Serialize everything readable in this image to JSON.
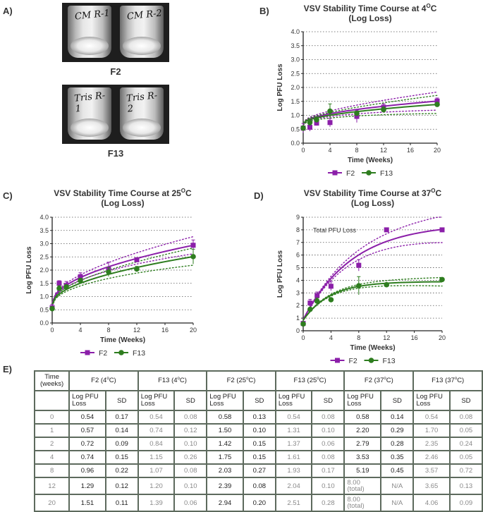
{
  "panel_labels": {
    "a": "A)",
    "b": "B)",
    "c": "C)",
    "d": "D)",
    "e": "E)"
  },
  "photos": {
    "f2": {
      "caption": "F2",
      "vial_left": "CM R-1",
      "vial_right": "CM R-2"
    },
    "f13": {
      "caption": "F13",
      "vial_left": "Tris R-1",
      "vial_right": "Tris R-2"
    }
  },
  "colors": {
    "f2": "#8b1fa9",
    "f13": "#2e7d1f"
  },
  "chart_data": [
    {
      "type": "scatter",
      "title_line1": "VSV Stability Time Course at 4",
      "title_sup": "O",
      "title_unit": "C",
      "title_line2": "(Log Loss)",
      "xlabel": "Time (Weeks)",
      "ylabel": "Log PFU Loss",
      "xlim": [
        0,
        20
      ],
      "ylim": [
        0,
        4
      ],
      "xticks": [
        0,
        4,
        8,
        12,
        16,
        20
      ],
      "yticks": [
        0.0,
        0.5,
        1.0,
        1.5,
        2.0,
        2.5,
        3.0,
        3.5,
        4.0
      ],
      "ytick_labels": [
        "0.0",
        "0.5",
        "1.0",
        "1.5",
        "2.0",
        "2.5",
        "3.0",
        "3.5",
        "4.0"
      ],
      "legend": [
        "F2",
        "F13"
      ],
      "series": [
        {
          "name": "F2",
          "x": [
            0,
            1,
            2,
            4,
            8,
            12,
            20
          ],
          "y": [
            0.54,
            0.57,
            0.72,
            0.74,
            0.96,
            1.29,
            1.51
          ],
          "sd": [
            0.17,
            0.14,
            0.09,
            0.15,
            0.22,
            0.12,
            0.11
          ]
        },
        {
          "name": "F13",
          "x": [
            0,
            1,
            2,
            4,
            8,
            12,
            20
          ],
          "y": [
            0.54,
            0.74,
            0.84,
            1.15,
            1.07,
            1.2,
            1.39
          ],
          "sd": [
            0.08,
            0.12,
            0.1,
            0.26,
            0.08,
            0.1,
            0.06
          ]
        }
      ]
    },
    {
      "type": "scatter",
      "title_line1": "VSV Stability Time Course at 25",
      "title_sup": "O",
      "title_unit": "C",
      "title_line2": "(Log Loss)",
      "xlabel": "Time (Weeks)",
      "ylabel": "Log PFU Loss",
      "xlim": [
        0,
        20
      ],
      "ylim": [
        0,
        4
      ],
      "xticks": [
        0,
        4,
        8,
        12,
        16,
        20
      ],
      "yticks": [
        0.0,
        0.5,
        1.0,
        1.5,
        2.0,
        2.5,
        3.0,
        3.5,
        4.0
      ],
      "ytick_labels": [
        "0.0",
        "0.5",
        "1.0",
        "1.5",
        "2.0",
        "2.5",
        "3.0",
        "3.5",
        "4.0"
      ],
      "legend": [
        "F2",
        "F13"
      ],
      "series": [
        {
          "name": "F2",
          "x": [
            0,
            1,
            2,
            4,
            8,
            12,
            20
          ],
          "y": [
            0.58,
            1.5,
            1.42,
            1.75,
            2.03,
            2.39,
            2.94
          ],
          "sd": [
            0.13,
            0.1,
            0.15,
            0.15,
            0.27,
            0.08,
            0.2
          ]
        },
        {
          "name": "F13",
          "x": [
            0,
            1,
            2,
            4,
            8,
            12,
            20
          ],
          "y": [
            0.54,
            1.31,
            1.37,
            1.61,
            1.93,
            2.04,
            2.51
          ],
          "sd": [
            0.08,
            0.1,
            0.06,
            0.08,
            0.17,
            0.1,
            0.28
          ]
        }
      ]
    },
    {
      "type": "scatter",
      "title_line1": "VSV Stability Time Course at 37",
      "title_sup": "O",
      "title_unit": "C",
      "title_line2": "(Log Loss)",
      "xlabel": "Time (Weeks)",
      "ylabel": "Log PFU Loss",
      "annotation": "Total PFU Loss",
      "xlim": [
        0,
        20
      ],
      "ylim": [
        0,
        9
      ],
      "xticks": [
        0,
        4,
        8,
        12,
        16,
        20
      ],
      "yticks": [
        0,
        1,
        2,
        3,
        4,
        5,
        6,
        7,
        8,
        9
      ],
      "ytick_labels": [
        "0",
        "1",
        "2",
        "3",
        "4",
        "5",
        "6",
        "7",
        "8",
        "9"
      ],
      "legend": [
        "F2",
        "F13"
      ],
      "series": [
        {
          "name": "F2",
          "x": [
            0,
            1,
            2,
            4,
            8,
            12,
            20
          ],
          "y": [
            0.58,
            2.2,
            2.79,
            3.53,
            5.19,
            8.0,
            8.0
          ],
          "sd": [
            0.14,
            0.29,
            0.28,
            0.35,
            0.45,
            0,
            0
          ]
        },
        {
          "name": "F13",
          "x": [
            0,
            1,
            2,
            4,
            8,
            12,
            20
          ],
          "y": [
            0.54,
            1.7,
            2.35,
            2.46,
            3.57,
            3.65,
            4.06
          ],
          "sd": [
            0.08,
            0.05,
            0.24,
            0.05,
            0.72,
            0.13,
            0.09
          ]
        }
      ]
    }
  ],
  "table": {
    "time_header": "Time (weeks)",
    "groups": [
      "F2 (4",
      "F13 (4",
      "F2 (25",
      "F13 (25",
      "F2 (37",
      "F13 (37"
    ],
    "group_sup": "o",
    "group_unit": "C)",
    "subheader_log": "Log PFU Loss",
    "subheader_sd": "SD",
    "rows": [
      {
        "time": "0",
        "cells": [
          "0.54",
          "0.17",
          "0.54",
          "0.08",
          "0.58",
          "0.13",
          "0.54",
          "0.08",
          "0.58",
          "0.14",
          "0.54",
          "0.08"
        ]
      },
      {
        "time": "1",
        "cells": [
          "0.57",
          "0.14",
          "0.74",
          "0.12",
          "1.50",
          "0.10",
          "1.31",
          "0.10",
          "2.20",
          "0.29",
          "1.70",
          "0.05"
        ]
      },
      {
        "time": "2",
        "cells": [
          "0.72",
          "0.09",
          "0.84",
          "0.10",
          "1.42",
          "0.15",
          "1.37",
          "0.06",
          "2.79",
          "0.28",
          "2.35",
          "0.24"
        ]
      },
      {
        "time": "4",
        "cells": [
          "0.74",
          "0.15",
          "1.15",
          "0.26",
          "1.75",
          "0.15",
          "1.61",
          "0.08",
          "3.53",
          "0.35",
          "2.46",
          "0.05"
        ]
      },
      {
        "time": "8",
        "cells": [
          "0.96",
          "0.22",
          "1.07",
          "0.08",
          "2.03",
          "0.27",
          "1.93",
          "0.17",
          "5.19",
          "0.45",
          "3.57",
          "0.72"
        ]
      },
      {
        "time": "12",
        "cells": [
          "1.29",
          "0.12",
          "1.20",
          "0.10",
          "2.39",
          "0.08",
          "2.04",
          "0.10",
          "8.00 (total)",
          "N/A",
          "3.65",
          "0.13"
        ]
      },
      {
        "time": "20",
        "cells": [
          "1.51",
          "0.11",
          "1.39",
          "0.06",
          "2.94",
          "0.20",
          "2.51",
          "0.28",
          "8.00 (total)",
          "N/A",
          "4.06",
          "0.09"
        ]
      }
    ]
  }
}
